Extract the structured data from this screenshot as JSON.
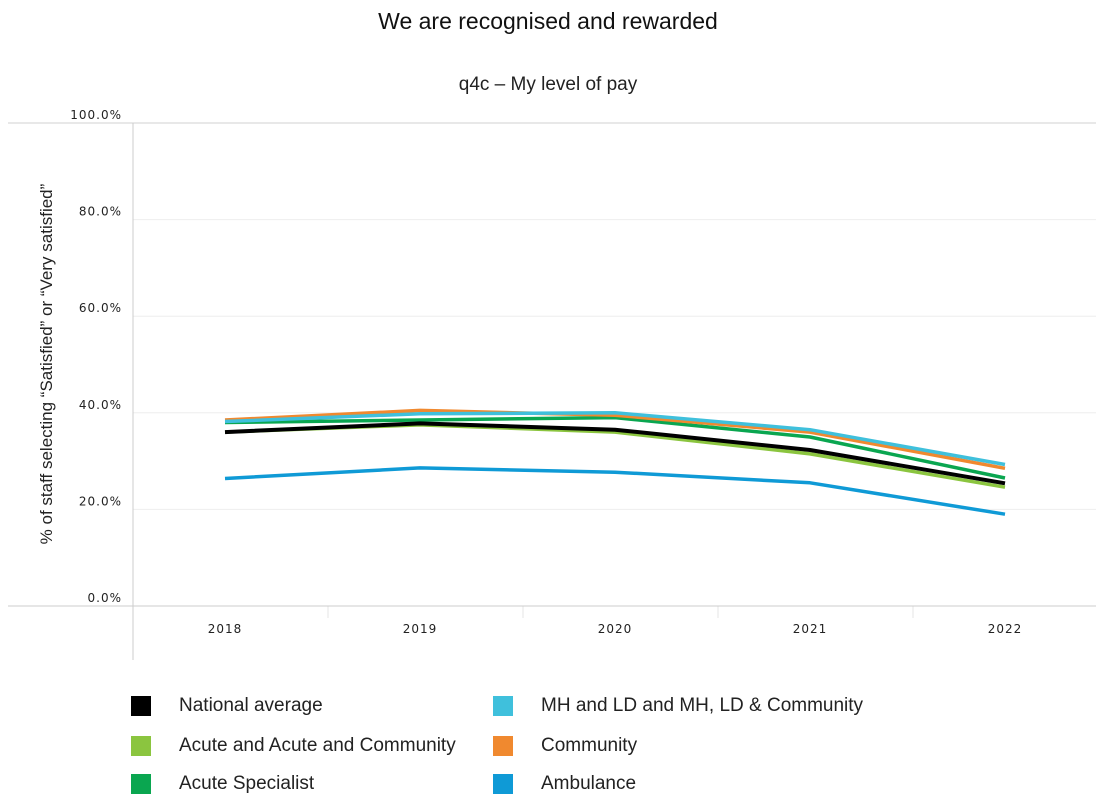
{
  "header": {
    "title": "We are recognised and rewarded",
    "subtitle": "q4c – My level of pay"
  },
  "chart_data": {
    "type": "line",
    "title": "We are recognised and rewarded",
    "subtitle": "q4c – My level of pay",
    "xlabel": "",
    "ylabel": "% of staff selecting “Satisfied” or “Very satisfied”",
    "categories": [
      "2018",
      "2019",
      "2020",
      "2021",
      "2022"
    ],
    "ylim": [
      0,
      100
    ],
    "yticks": [
      0,
      20,
      40,
      60,
      80,
      100
    ],
    "ytick_labels": [
      "0.0%",
      "20.0%",
      "40.0%",
      "60.0%",
      "80.0%",
      "100.0%"
    ],
    "grid": true,
    "legend_position": "bottom",
    "series": [
      {
        "name": "Ambulance",
        "color": "#0f9ad6",
        "values": [
          26.4,
          28.6,
          27.7,
          25.5,
          19.0
        ]
      },
      {
        "name": "Acute and Acute and Community",
        "color": "#8bc53f",
        "values": [
          36.0,
          37.5,
          36.0,
          31.5,
          24.6
        ]
      },
      {
        "name": "Acute Specialist",
        "color": "#0aa650",
        "values": [
          38.0,
          38.5,
          39.0,
          35.0,
          26.5
        ]
      },
      {
        "name": "Community",
        "color": "#f0892f",
        "values": [
          38.5,
          40.5,
          39.5,
          36.0,
          28.5
        ]
      },
      {
        "name": "MH and LD and MH, LD & Community",
        "color": "#3fc0dc",
        "values": [
          38.2,
          39.8,
          40.0,
          36.5,
          29.3
        ]
      },
      {
        "name": "National average",
        "color": "#000000",
        "values": [
          36.0,
          37.8,
          36.5,
          32.3,
          25.4
        ]
      }
    ]
  },
  "legend": {
    "items": [
      {
        "label": "National average",
        "color": "#000000"
      },
      {
        "label": "Acute and Acute and Community",
        "color": "#8bc53f"
      },
      {
        "label": "Acute Specialist",
        "color": "#0aa650"
      },
      {
        "label": "MH and LD and MH, LD & Community",
        "color": "#3fc0dc"
      },
      {
        "label": "Community",
        "color": "#f0892f"
      },
      {
        "label": "Ambulance",
        "color": "#0f9ad6"
      }
    ]
  }
}
